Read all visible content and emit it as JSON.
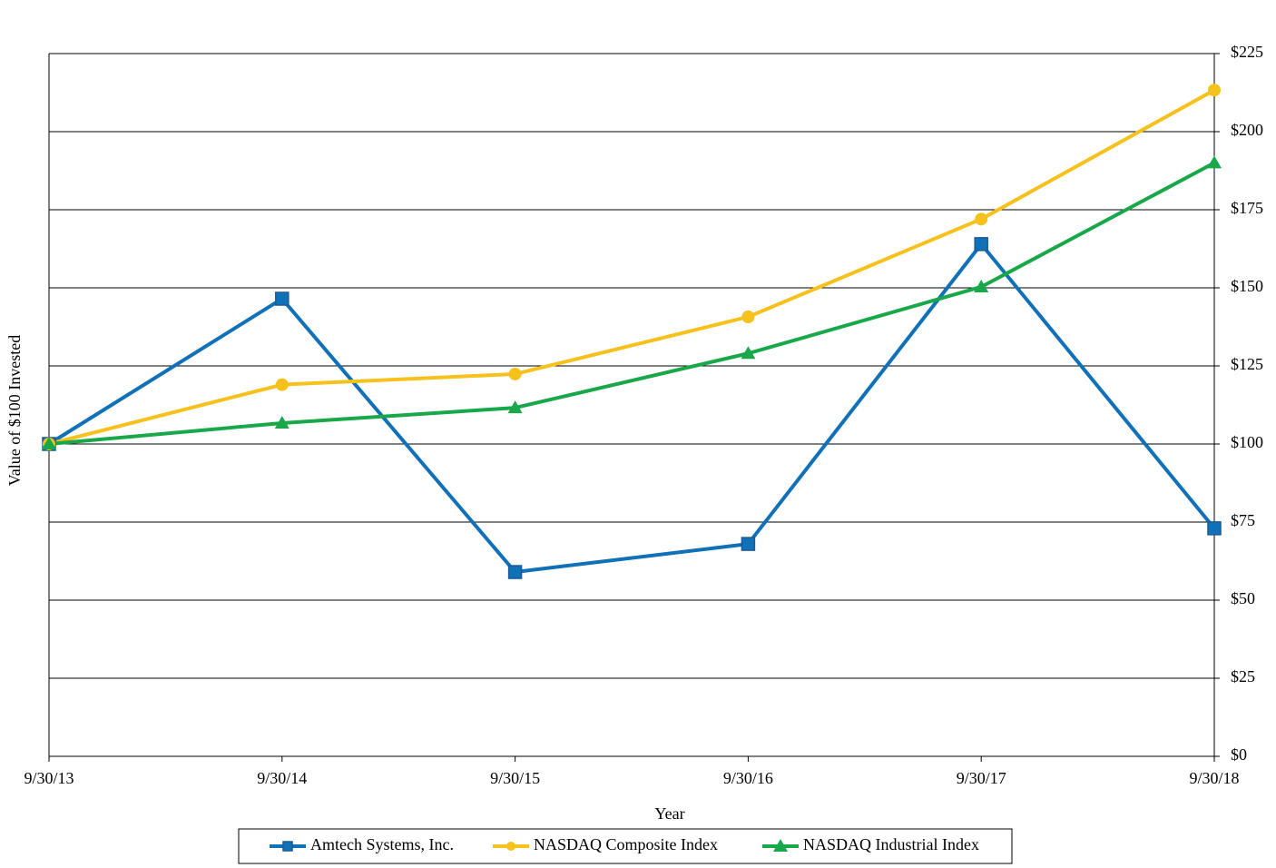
{
  "chart_data": {
    "type": "line",
    "x_label": "Year",
    "y_label": "Value of $100 Invested",
    "categories": [
      "9/30/13",
      "9/30/14",
      "9/30/15",
      "9/30/16",
      "9/30/17",
      "9/30/18"
    ],
    "series": [
      {
        "name": "Amtech Systems, Inc.",
        "color": "#1070b8",
        "marker": "square",
        "values": [
          100,
          146.5,
          59,
          68,
          164,
          73
        ]
      },
      {
        "name": "NASDAQ Composite Index",
        "color": "#f7c11c",
        "marker": "circle",
        "values": [
          100,
          119,
          122.4,
          140.7,
          172,
          213.3
        ]
      },
      {
        "name": "NASDAQ Industrial Index",
        "color": "#18a84a",
        "marker": "triangle",
        "values": [
          100,
          106.7,
          111.6,
          129,
          150.3,
          190
        ]
      }
    ],
    "ylim": [
      0,
      225
    ],
    "yticks": [
      {
        "value": 0,
        "label": "$0"
      },
      {
        "value": 25,
        "label": "$25"
      },
      {
        "value": 50,
        "label": "$50"
      },
      {
        "value": 75,
        "label": "$75"
      },
      {
        "value": 100,
        "label": "$100"
      },
      {
        "value": 125,
        "label": "$125"
      },
      {
        "value": 150,
        "label": "$150"
      },
      {
        "value": 175,
        "label": "$175"
      },
      {
        "value": 200,
        "label": "$200"
      },
      {
        "value": 225,
        "label": "$225"
      }
    ],
    "grid": true,
    "y_axis_side": "right",
    "legend": "bottom"
  }
}
